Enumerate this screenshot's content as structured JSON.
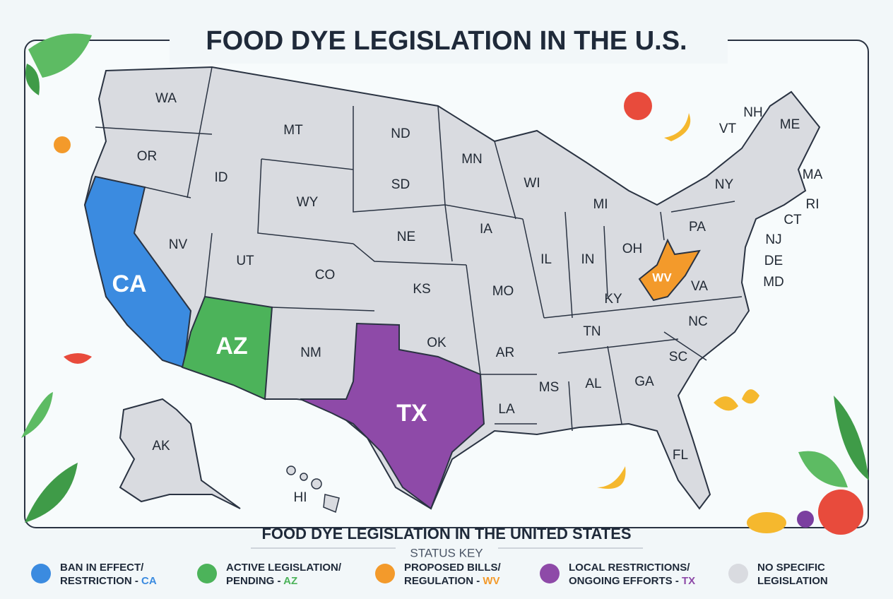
{
  "title": "FOOD DYE LEGISLATION IN THE U.S.",
  "states": [
    "WA",
    "OR",
    "CA",
    "NV",
    "ID",
    "MT",
    "WY",
    "UT",
    "AZ",
    "CO",
    "NM",
    "ND",
    "SD",
    "NE",
    "KS",
    "OK",
    "TX",
    "MN",
    "IA",
    "MO",
    "AR",
    "LA",
    "WI",
    "IL",
    "MS",
    "MI",
    "IN",
    "KY",
    "TN",
    "AL",
    "GA",
    "FL",
    "OH",
    "WV",
    "VA",
    "NC",
    "SC",
    "PA",
    "NY",
    "VT",
    "NH",
    "ME",
    "MA",
    "RI",
    "CT",
    "NJ",
    "DE",
    "MD",
    "AK",
    "HI"
  ],
  "legend": {
    "title": "FOOD DYE LEGISLATION IN THE UNITED STATES",
    "subtitle": "STATUS KEY",
    "items": [
      {
        "line1": "BAN IN EFFECT/",
        "line2": "RESTRICTION -",
        "state": "CA",
        "color": "#3b8be0"
      },
      {
        "line1": "ACTIVE LEGISLATION/",
        "line2": "PENDING -",
        "state": "AZ",
        "color": "#4cb35a"
      },
      {
        "line1": "PROPOSED BILLS/",
        "line2": "REGULATION -",
        "state": "WV",
        "color": "#f39a2b"
      },
      {
        "line1": "LOCAL RESTRICTIONS/",
        "line2": "ONGOING EFFORTS -",
        "state": "TX",
        "color": "#8e4aa8"
      },
      {
        "line1": "NO SPECIFIC",
        "line2": "LEGISLATION",
        "color": "#d9dbe0"
      }
    ]
  }
}
